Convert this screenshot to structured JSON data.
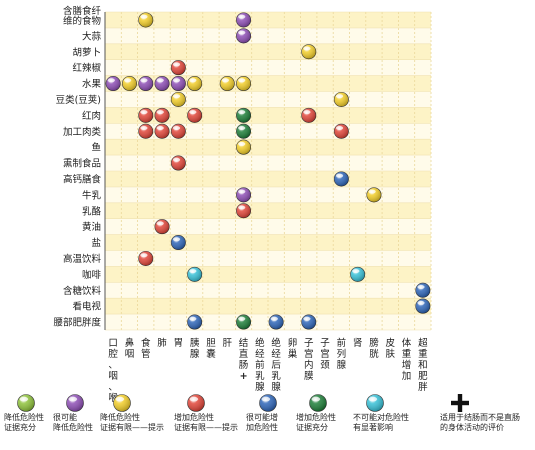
{
  "chart_data": {
    "type": "matrix",
    "rows": [
      "含膳食纤维的食物",
      "大蒜",
      "胡萝卜",
      "红辣椒",
      "水果",
      "豆类(豆荚)",
      "红肉",
      "加工肉类",
      "鱼",
      "熏制食品",
      "高钙膳食",
      "牛乳",
      "乳酪",
      "黄油",
      "盐",
      "高温饮料",
      "咖啡",
      "含糖饮料",
      "看电视",
      "腰部肥胖度"
    ],
    "row_label_lines": {
      "0": [
        "含膳食纤",
        "维的食物"
      ]
    },
    "columns": [
      "口腔、咽、喉",
      "鼻咽",
      "食管",
      "肺",
      "胃",
      "胰腺",
      "胆囊",
      "肝",
      "结直肠+",
      "绝经前乳腺",
      "绝经后乳腺",
      "卵巢",
      "子宫内膜",
      "子宫颈",
      "前列腺",
      "肾",
      "膀胱",
      "皮肤",
      "体重增加",
      "超重和肥胖"
    ],
    "column_labels": [
      [
        "口",
        "腔",
        "、",
        "咽",
        "、",
        "喉"
      ],
      [
        "鼻",
        "咽"
      ],
      [
        "食",
        "管"
      ],
      [
        "肺"
      ],
      [
        "胃"
      ],
      [
        "胰",
        "腺"
      ],
      [
        "胆",
        "囊"
      ],
      [
        "肝"
      ],
      [
        "结",
        "直",
        "肠",
        "+"
      ],
      [
        "绝",
        "经",
        "前",
        "乳",
        "腺"
      ],
      [
        "绝",
        "经",
        "后",
        "乳",
        "腺"
      ],
      [
        "卵",
        "巢"
      ],
      [
        "子",
        "宫",
        "内",
        "膜"
      ],
      [
        "子",
        "宫",
        "颈"
      ],
      [
        "前",
        "列",
        "腺"
      ],
      [
        "肾"
      ],
      [
        "膀",
        "胱"
      ],
      [
        "皮",
        "肤"
      ],
      [
        "体",
        "重",
        "增",
        "加"
      ],
      [
        "超",
        "重",
        "和",
        "肥",
        "胖"
      ]
    ],
    "category_colors": {
      "green": "#8fc23c",
      "purple": "#8e4fb5",
      "yellow": "#f1cd2a",
      "red": "#e0463a",
      "blue": "#2f66b8",
      "darkgreen": "#1f7f3a",
      "cyan": "#38c0d6"
    },
    "points": [
      {
        "row": 0,
        "col": 2,
        "cat": "yellow"
      },
      {
        "row": 0,
        "col": 8,
        "cat": "purple"
      },
      {
        "row": 1,
        "col": 8,
        "cat": "purple"
      },
      {
        "row": 2,
        "col": 12,
        "cat": "yellow"
      },
      {
        "row": 3,
        "col": 4,
        "cat": "red"
      },
      {
        "row": 4,
        "col": 0,
        "cat": "purple"
      },
      {
        "row": 4,
        "col": 1,
        "cat": "yellow"
      },
      {
        "row": 4,
        "col": 2,
        "cat": "purple"
      },
      {
        "row": 4,
        "col": 3,
        "cat": "purple"
      },
      {
        "row": 4,
        "col": 4,
        "cat": "purple"
      },
      {
        "row": 4,
        "col": 5,
        "cat": "yellow"
      },
      {
        "row": 4,
        "col": 7,
        "cat": "yellow"
      },
      {
        "row": 4,
        "col": 8,
        "cat": "yellow"
      },
      {
        "row": 5,
        "col": 4,
        "cat": "yellow"
      },
      {
        "row": 5,
        "col": 14,
        "cat": "yellow"
      },
      {
        "row": 6,
        "col": 2,
        "cat": "red"
      },
      {
        "row": 6,
        "col": 3,
        "cat": "red"
      },
      {
        "row": 6,
        "col": 5,
        "cat": "red"
      },
      {
        "row": 6,
        "col": 8,
        "cat": "darkgreen"
      },
      {
        "row": 6,
        "col": 12,
        "cat": "red"
      },
      {
        "row": 7,
        "col": 2,
        "cat": "red"
      },
      {
        "row": 7,
        "col": 3,
        "cat": "red"
      },
      {
        "row": 7,
        "col": 4,
        "cat": "red"
      },
      {
        "row": 7,
        "col": 8,
        "cat": "darkgreen"
      },
      {
        "row": 7,
        "col": 14,
        "cat": "red"
      },
      {
        "row": 8,
        "col": 8,
        "cat": "yellow"
      },
      {
        "row": 9,
        "col": 4,
        "cat": "red"
      },
      {
        "row": 10,
        "col": 14,
        "cat": "blue"
      },
      {
        "row": 11,
        "col": 8,
        "cat": "purple"
      },
      {
        "row": 11,
        "col": 16,
        "cat": "yellow"
      },
      {
        "row": 12,
        "col": 8,
        "cat": "red"
      },
      {
        "row": 13,
        "col": 3,
        "cat": "red"
      },
      {
        "row": 14,
        "col": 4,
        "cat": "blue"
      },
      {
        "row": 15,
        "col": 2,
        "cat": "red"
      },
      {
        "row": 16,
        "col": 5,
        "cat": "cyan"
      },
      {
        "row": 16,
        "col": 15,
        "cat": "cyan"
      },
      {
        "row": 17,
        "col": 19,
        "cat": "blue"
      },
      {
        "row": 18,
        "col": 19,
        "cat": "blue"
      },
      {
        "row": 19,
        "col": 5,
        "cat": "blue"
      },
      {
        "row": 19,
        "col": 8,
        "cat": "darkgreen"
      },
      {
        "row": 19,
        "col": 10,
        "cat": "blue"
      },
      {
        "row": 19,
        "col": 12,
        "cat": "blue"
      }
    ],
    "legend": [
      {
        "cat": "green",
        "lines": [
          "降低危险性",
          "证据充分"
        ]
      },
      {
        "cat": "purple",
        "lines": [
          "很可能",
          "降低危险性"
        ]
      },
      {
        "cat": "yellow",
        "lines": [
          "降低危险性",
          "证据有限——提示"
        ]
      },
      {
        "cat": "red",
        "lines": [
          "增加危险性",
          "证据有限——提示"
        ]
      },
      {
        "cat": "blue",
        "lines": [
          "很可能增",
          "加危险性"
        ]
      },
      {
        "cat": "darkgreen",
        "lines": [
          "增加危险性",
          "证据充分"
        ]
      },
      {
        "cat": "cyan",
        "lines": [
          "不可能对危险性",
          "有显著影响"
        ]
      },
      {
        "cat": "plus",
        "lines": [
          "适用于结肠而不是直肠",
          "的身体活动的评价"
        ]
      }
    ],
    "grid": true
  }
}
